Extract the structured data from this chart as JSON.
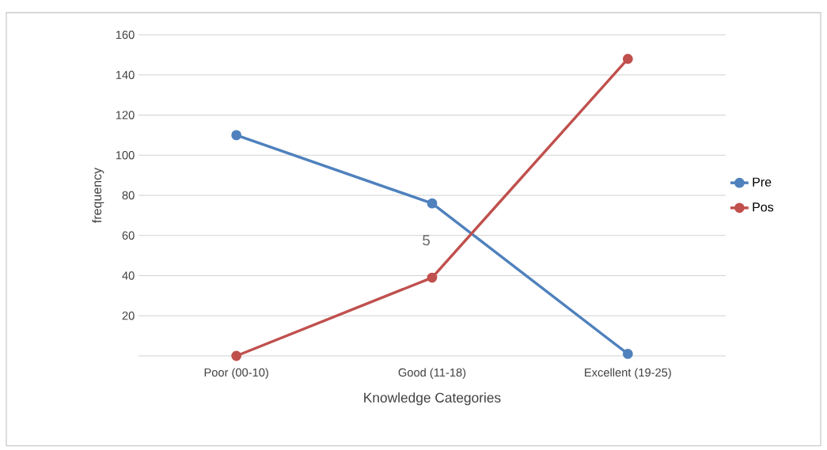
{
  "chart_data": {
    "type": "line",
    "xlabel": "Knowledge Categories",
    "ylabel": "frequency",
    "categories": [
      "Poor (00-10)",
      "Good (11-18)",
      "Excellent (19-25)"
    ],
    "series": [
      {
        "name": "Pre",
        "color": "#4f81bd",
        "values": [
          110,
          76,
          1
        ]
      },
      {
        "name": "Pos",
        "color": "#c0504d",
        "values": [
          0,
          39,
          148
        ]
      }
    ],
    "ylim": [
      0,
      160
    ],
    "yticks": [
      {
        "value": 0,
        "label": null
      },
      20,
      40,
      60,
      80,
      100,
      120,
      140,
      160
    ],
    "grid": "y",
    "legend": "right",
    "marker": "circle",
    "line_style": "solid",
    "annotations": [
      "5"
    ]
  }
}
